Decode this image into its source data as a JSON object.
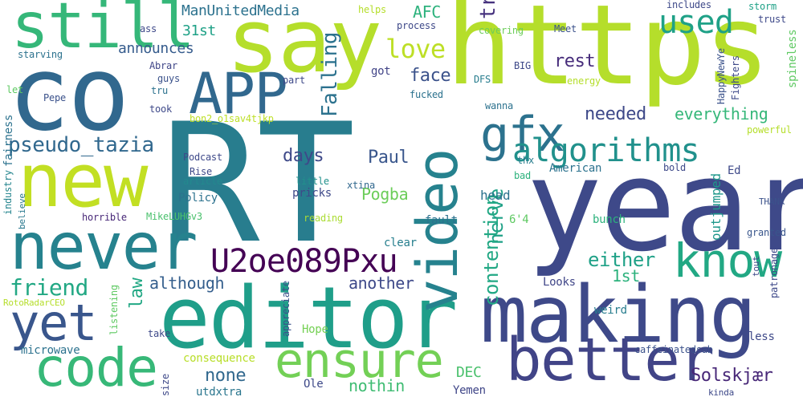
{
  "cloud": {
    "words": [
      {
        "text": "RT",
        "color": "#287d8e"
      },
      {
        "text": "https",
        "color": "#b5de2b"
      },
      {
        "text": "year",
        "color": "#3e4989"
      },
      {
        "text": "say",
        "color": "#b5de2b"
      },
      {
        "text": "co",
        "color": "#31688e"
      },
      {
        "text": "editor",
        "color": "#1f9e89"
      },
      {
        "text": "making",
        "color": "#3e4989"
      },
      {
        "text": "new",
        "color": "#c2df23"
      },
      {
        "text": "never",
        "color": "#26828e"
      },
      {
        "text": "better",
        "color": "#414487"
      },
      {
        "text": "still",
        "color": "#35b779"
      },
      {
        "text": "APP",
        "color": "#31688e"
      },
      {
        "text": "code",
        "color": "#37b878"
      },
      {
        "text": "ensure",
        "color": "#73d056"
      },
      {
        "text": "video",
        "color": "#26828e"
      },
      {
        "text": "know",
        "color": "#22a884"
      },
      {
        "text": "yet",
        "color": "#39568c"
      },
      {
        "text": "gfx",
        "color": "#2c728e"
      },
      {
        "text": "algorithms",
        "color": "#21918c"
      },
      {
        "text": "U2oe089Pxu",
        "color": "#440154"
      },
      {
        "text": "used",
        "color": "#1fa187"
      },
      {
        "text": "pseudo_tazia",
        "color": "#31688e"
      },
      {
        "text": "transmission",
        "color": "#46327e"
      },
      {
        "text": "Falling",
        "color": "#2c728e"
      },
      {
        "text": "love",
        "color": "#bddf26"
      },
      {
        "text": "friend",
        "color": "#22a884"
      },
      {
        "text": "nerve",
        "color": "#1fa187"
      },
      {
        "text": "contention",
        "color": "#22a884"
      },
      {
        "text": "either",
        "color": "#1fa187"
      },
      {
        "text": "needed",
        "color": "#3e4989"
      },
      {
        "text": "everything",
        "color": "#35b779"
      },
      {
        "text": "Solskjær",
        "color": "#482878"
      },
      {
        "text": "ManUnitedMedia",
        "color": "#2c728e"
      },
      {
        "text": "AFC",
        "color": "#2db27d"
      },
      {
        "text": "rest",
        "color": "#472d7b"
      },
      {
        "text": "face",
        "color": "#3b528b"
      },
      {
        "text": "announces",
        "color": "#365c8d"
      },
      {
        "text": "31st",
        "color": "#1fa187"
      },
      {
        "text": "days",
        "color": "#3e4989"
      },
      {
        "text": "Paul",
        "color": "#39568c"
      },
      {
        "text": "Pogba",
        "color": "#6ccd5a"
      },
      {
        "text": "law",
        "color": "#22a884"
      },
      {
        "text": "although",
        "color": "#355f8d"
      },
      {
        "text": "another",
        "color": "#3e4989"
      },
      {
        "text": "1st",
        "color": "#2db27d"
      },
      {
        "text": "none",
        "color": "#31688e"
      },
      {
        "text": "nothin",
        "color": "#3fbc73"
      },
      {
        "text": "DEC",
        "color": "#4ac16d"
      },
      {
        "text": "Yemen",
        "color": "#404688"
      },
      {
        "text": "Ole",
        "color": "#3e4989"
      },
      {
        "text": "utdxtra",
        "color": "#2a768e"
      },
      {
        "text": "Hope",
        "color": "#75d054"
      },
      {
        "text": "consequence",
        "color": "#b8de29"
      },
      {
        "text": "microwave",
        "color": "#2c728e"
      },
      {
        "text": "Looks",
        "color": "#404688"
      },
      {
        "text": "weird",
        "color": "#287d8e"
      },
      {
        "text": "less",
        "color": "#3e4989"
      },
      {
        "text": "caffeinatedsab",
        "color": "#3b528b"
      },
      {
        "text": "bunch",
        "color": "#2db27d"
      },
      {
        "text": "outjumped",
        "color": "#1f988b"
      },
      {
        "text": "granted",
        "color": "#39568c"
      },
      {
        "text": "6'4",
        "color": "#5ec962"
      },
      {
        "text": "head",
        "color": "#2c728e"
      },
      {
        "text": "fault",
        "color": "#2c728e"
      },
      {
        "text": "clear",
        "color": "#277f8e"
      },
      {
        "text": "pricks",
        "color": "#3e4989"
      },
      {
        "text": "Policy",
        "color": "#2c728e"
      },
      {
        "text": "MikeLUHGv3",
        "color": "#4ac16d"
      },
      {
        "text": "horrible",
        "color": "#482878"
      },
      {
        "text": "reading",
        "color": "#aadc32"
      },
      {
        "text": "Ed",
        "color": "#3e4989"
      },
      {
        "text": "THANK",
        "color": "#3b528b"
      },
      {
        "text": "American",
        "color": "#2c728e"
      },
      {
        "text": "bold",
        "color": "#3e4989"
      },
      {
        "text": "thx",
        "color": "#287d8e"
      },
      {
        "text": "xtina",
        "color": "#31688e"
      },
      {
        "text": "bad",
        "color": "#2db27d"
      },
      {
        "text": "little",
        "color": "#21918c"
      },
      {
        "text": "article",
        "color": "#23898e"
      },
      {
        "text": "Rise",
        "color": "#3e4989"
      },
      {
        "text": "Podcast",
        "color": "#3e4989"
      },
      {
        "text": "industry",
        "color": "#25858e"
      },
      {
        "text": "fairness",
        "color": "#2c728e"
      },
      {
        "text": "believe",
        "color": "#2a788e"
      },
      {
        "text": "bon2_o1sav4tjkp",
        "color": "#bddf26"
      },
      {
        "text": "took",
        "color": "#3e4989"
      },
      {
        "text": "Pepe",
        "color": "#3b528b"
      },
      {
        "text": "tru",
        "color": "#2c728e"
      },
      {
        "text": "guys",
        "color": "#3b528b"
      },
      {
        "text": "Abrar",
        "color": "#404688"
      },
      {
        "text": "part",
        "color": "#3e4989"
      },
      {
        "text": "got",
        "color": "#414487"
      },
      {
        "text": "fucked",
        "color": "#2c728e"
      },
      {
        "text": "DFS",
        "color": "#287d8e"
      },
      {
        "text": "BIG",
        "color": "#3e4989"
      },
      {
        "text": "Meet",
        "color": "#3b528b"
      },
      {
        "text": "covering",
        "color": "#6ccd5a"
      },
      {
        "text": "process",
        "color": "#3e4989"
      },
      {
        "text": "helps",
        "color": "#b5de2b"
      },
      {
        "text": "includes",
        "color": "#3e4989"
      },
      {
        "text": "storm",
        "color": "#1fa187"
      },
      {
        "text": "trust",
        "color": "#3e4989"
      },
      {
        "text": "spineless",
        "color": "#5ec962"
      },
      {
        "text": "Fighters",
        "color": "#3e4989"
      },
      {
        "text": "HappyNewYe",
        "color": "#3b528b"
      },
      {
        "text": "energy",
        "color": "#b5de2b"
      },
      {
        "text": "wanna",
        "color": "#2c728e"
      },
      {
        "text": "powerful",
        "color": "#b5de2b"
      },
      {
        "text": "tout",
        "color": "#3e4989"
      },
      {
        "text": "patronage",
        "color": "#3e4989"
      },
      {
        "text": "appreciate",
        "color": "#3b528b"
      },
      {
        "text": "take",
        "color": "#3e4989"
      },
      {
        "text": "listening",
        "color": "#5ec962"
      },
      {
        "text": "size",
        "color": "#3e4989"
      },
      {
        "text": "RotoRadarCEO",
        "color": "#b5de2b"
      },
      {
        "text": "kinda",
        "color": "#3e4989"
      },
      {
        "text": "starving",
        "color": "#2c728e"
      },
      {
        "text": "ass",
        "color": "#3e4989"
      },
      {
        "text": "let",
        "color": "#5ec962"
      }
    ]
  }
}
